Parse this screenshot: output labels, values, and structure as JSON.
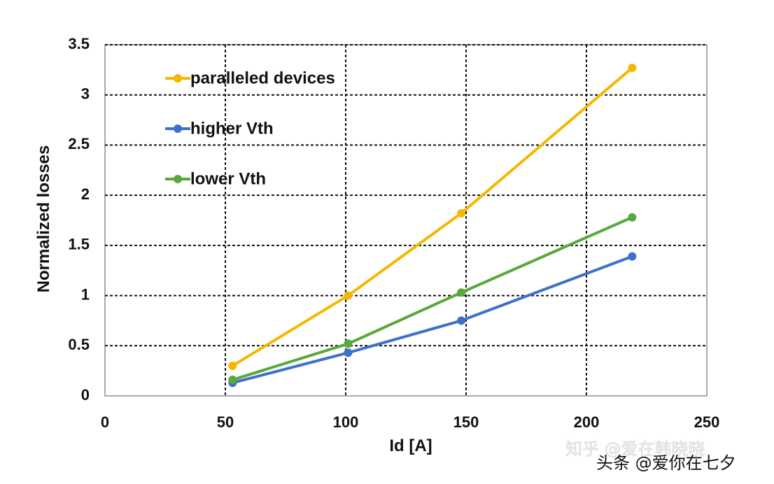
{
  "chart_data": {
    "type": "line",
    "title": "",
    "xlabel": "Id [A]",
    "ylabel": "Normalized losses",
    "xlim": [
      0,
      250
    ],
    "ylim": [
      0,
      3.5
    ],
    "xticks": [
      0,
      50,
      100,
      150,
      200,
      250
    ],
    "xtick_labels": [
      "0",
      "50",
      "100",
      "150",
      "200",
      "250"
    ],
    "yticks": [
      0,
      0.5,
      1,
      1.5,
      2,
      2.5,
      3,
      3.5
    ],
    "ytick_labels": [
      "0",
      "0.5",
      "1",
      "1.5",
      "2",
      "2.5",
      "3",
      "3.5"
    ],
    "grid": true,
    "legend_position": "top-left",
    "series": [
      {
        "name": "paralleled devices",
        "color": "#F5B800",
        "x": [
          53,
          101,
          148,
          219
        ],
        "y": [
          0.3,
          1.0,
          1.82,
          3.27
        ]
      },
      {
        "name": "higher Vth",
        "color": "#3F70C9",
        "x": [
          53,
          101,
          148,
          219
        ],
        "y": [
          0.13,
          0.43,
          0.75,
          1.39
        ]
      },
      {
        "name": "lower Vth",
        "color": "#58A83A",
        "x": [
          53,
          101,
          148,
          219
        ],
        "y": [
          0.16,
          0.52,
          1.03,
          1.78
        ]
      }
    ]
  },
  "watermark": {
    "line1": "知乎 @爱在韩晓晓",
    "line2": "头条 @爱你在七夕"
  }
}
